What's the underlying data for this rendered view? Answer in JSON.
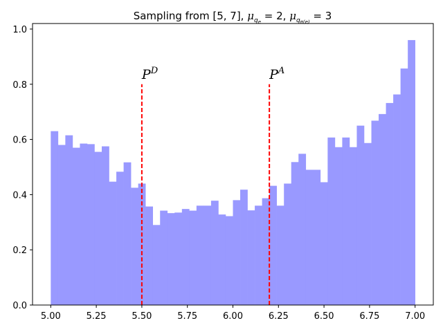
{
  "chart_data": {
    "type": "bar",
    "title": "Sampling from [5, 7],  μ_{q_e} = 2,  μ_{q_{π(e)}} = 3",
    "xlabel": "",
    "ylabel": "",
    "xlim": [
      4.9,
      7.1
    ],
    "ylim": [
      0,
      1.02
    ],
    "xticks": [
      "5.00",
      "5.25",
      "5.50",
      "5.75",
      "6.00",
      "6.25",
      "6.50",
      "6.75",
      "7.00"
    ],
    "yticks": [
      "0.0",
      "0.2",
      "0.4",
      "0.6",
      "0.8",
      "1.0"
    ],
    "grid": false,
    "bar_color": "#9999ff",
    "bins": {
      "start": 5.0,
      "end": 7.0,
      "count": 50
    },
    "values": [
      0.63,
      0.58,
      0.615,
      0.57,
      0.585,
      0.583,
      0.555,
      0.575,
      0.447,
      0.483,
      0.517,
      0.425,
      0.44,
      0.357,
      0.29,
      0.342,
      0.333,
      0.335,
      0.348,
      0.342,
      0.36,
      0.36,
      0.378,
      0.328,
      0.322,
      0.38,
      0.418,
      0.343,
      0.36,
      0.387,
      0.432,
      0.36,
      0.44,
      0.518,
      0.548,
      0.49,
      0.49,
      0.445,
      0.607,
      0.572,
      0.607,
      0.572,
      0.65,
      0.587,
      0.668,
      0.692,
      0.732,
      0.763,
      0.857,
      0.96
    ],
    "vlines": [
      {
        "x": 5.5,
        "y": 0.8,
        "label": "P",
        "sup": "D",
        "color": "#ff0000"
      },
      {
        "x": 6.2,
        "y": 0.8,
        "label": "P",
        "sup": "A",
        "color": "#ff0000"
      }
    ]
  }
}
